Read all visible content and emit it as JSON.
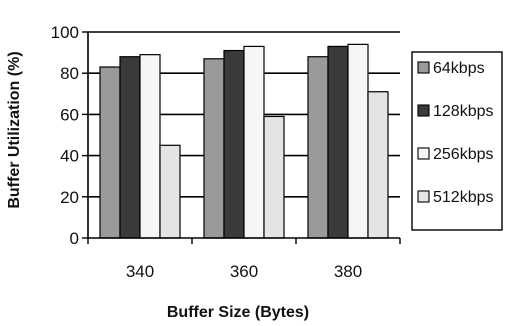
{
  "chart_data": {
    "type": "bar",
    "title": "",
    "xlabel": "Buffer Size (Bytes)",
    "ylabel": "Buffer Utilization (%)",
    "categories": [
      "340",
      "360",
      "380"
    ],
    "ylim": [
      0,
      100
    ],
    "yticks": [
      0,
      20,
      40,
      60,
      80,
      100
    ],
    "grid": true,
    "legend_position": "right",
    "series": [
      {
        "name": "64kbps",
        "values": [
          83,
          87,
          88
        ],
        "color": "#9a9a9a"
      },
      {
        "name": "128kbps",
        "values": [
          88,
          91,
          93
        ],
        "color": "#3a3a3a"
      },
      {
        "name": "256kbps",
        "values": [
          89,
          93,
          94
        ],
        "color": "#f6f6f6"
      },
      {
        "name": "512kbps",
        "values": [
          45,
          59,
          71
        ],
        "color": "#e4e4e4"
      }
    ]
  }
}
